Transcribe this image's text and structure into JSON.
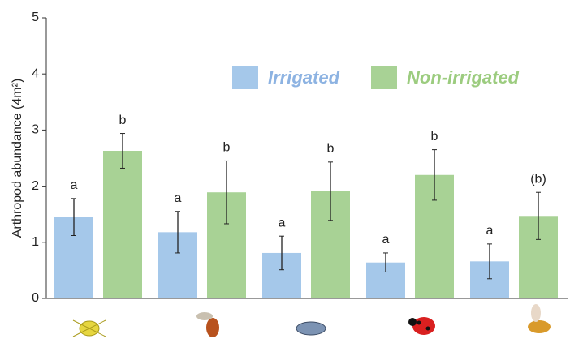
{
  "chart_data": {
    "type": "bar",
    "y_label": "Arthropod abundance (4m²)",
    "categories": [
      null,
      null,
      null,
      null,
      null
    ],
    "ylim": [
      0,
      5
    ],
    "yticks": [
      0,
      1,
      2,
      3,
      4,
      5
    ],
    "grid": false,
    "series": [
      {
        "name": "Irrigated",
        "color": "#a5c8ea",
        "text_color": "#8db3e2",
        "values": [
          1.45,
          1.18,
          0.81,
          0.64,
          0.66
        ],
        "errors": [
          0.33,
          0.37,
          0.3,
          0.17,
          0.31
        ],
        "letters": [
          "a",
          "a",
          "a",
          "a",
          "a"
        ]
      },
      {
        "name": "Non-irrigated",
        "color": "#a8d295",
        "text_color": "#9ccc7f",
        "values": [
          2.63,
          1.89,
          1.91,
          2.2,
          1.47
        ],
        "errors": [
          0.31,
          0.56,
          0.52,
          0.45,
          0.42
        ],
        "letters": [
          "b",
          "b",
          "b",
          "b",
          "(b)"
        ]
      }
    ]
  }
}
